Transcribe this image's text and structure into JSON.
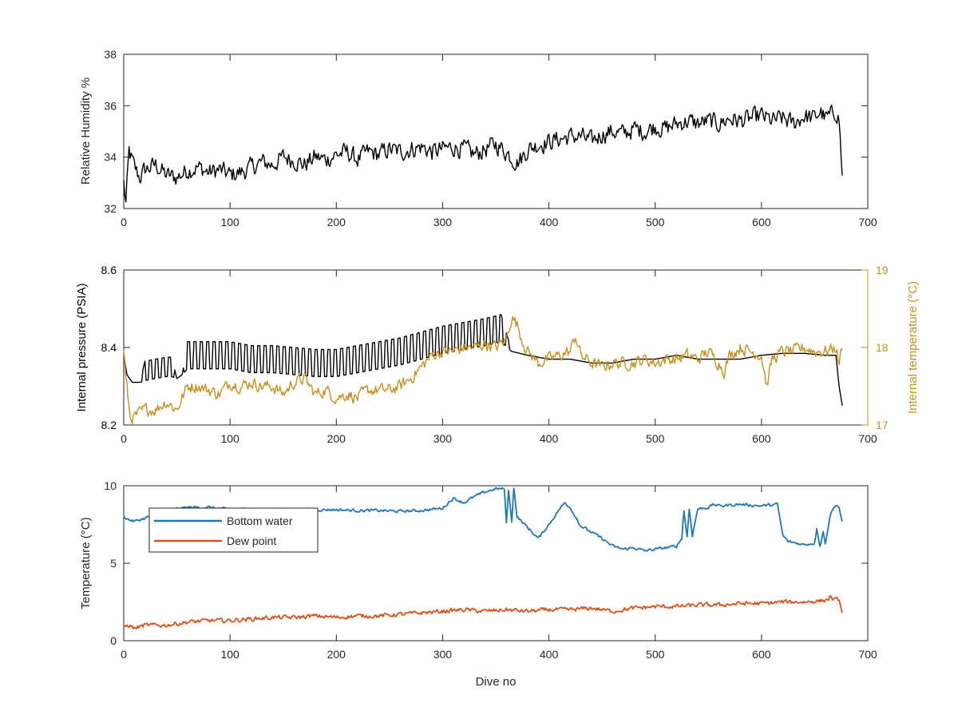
{
  "colors": {
    "black": "#000000",
    "gold": "#c8901a",
    "blue": "#1f77b4",
    "orange": "#d9541a",
    "axis": "#262626"
  },
  "chart_data": [
    {
      "type": "line",
      "id": "humidity",
      "title": "",
      "xlabel": "",
      "ylabel": "Relative Humidity %",
      "xlim": [
        0,
        700
      ],
      "ylim": [
        32,
        38
      ],
      "xticks": [
        "0",
        "100",
        "200",
        "300",
        "400",
        "500",
        "600",
        "700"
      ],
      "yticks": [
        "32",
        "34",
        "36",
        "38"
      ],
      "grid": false,
      "series": [
        {
          "color": "#000000",
          "x": [
            0,
            2,
            5,
            10,
            15,
            20,
            30,
            40,
            50,
            60,
            70,
            80,
            90,
            100,
            110,
            120,
            130,
            140,
            150,
            160,
            170,
            180,
            190,
            200,
            210,
            220,
            230,
            240,
            250,
            260,
            270,
            280,
            290,
            300,
            310,
            320,
            330,
            340,
            350,
            360,
            370,
            375,
            380,
            390,
            400,
            410,
            420,
            430,
            440,
            450,
            460,
            470,
            480,
            490,
            500,
            510,
            520,
            530,
            540,
            550,
            560,
            570,
            580,
            590,
            600,
            610,
            620,
            630,
            640,
            650,
            655,
            660,
            665,
            670,
            673,
            676
          ],
          "y": [
            33.0,
            32.2,
            34.2,
            33.6,
            33.2,
            33.5,
            33.7,
            33.3,
            33.2,
            33.5,
            33.6,
            33.4,
            33.5,
            33.3,
            33.4,
            33.6,
            33.8,
            33.7,
            34.0,
            33.9,
            33.7,
            34.0,
            33.9,
            34.1,
            34.2,
            33.9,
            34.2,
            34.1,
            34.3,
            34.2,
            34.3,
            34.4,
            34.2,
            34.3,
            34.4,
            34.3,
            34.1,
            34.3,
            34.5,
            34.2,
            33.8,
            34.0,
            34.3,
            34.5,
            34.6,
            34.7,
            34.8,
            34.8,
            34.6,
            34.9,
            35.0,
            34.9,
            35.1,
            35.0,
            35.2,
            35.1,
            35.3,
            35.4,
            35.3,
            35.4,
            35.3,
            35.5,
            35.4,
            35.5,
            35.6,
            35.4,
            35.5,
            35.3,
            35.6,
            35.5,
            35.8,
            35.5,
            35.6,
            35.8,
            35.5,
            33.2
          ],
          "noise": 0.4
        }
      ]
    },
    {
      "type": "line",
      "id": "pressure",
      "title": "",
      "xlabel": "",
      "ylabel": "Internal pressure (PSIA)",
      "ylabel_right": "Internal temperature (°C)",
      "xlim": [
        0,
        700
      ],
      "ylim": [
        8.2,
        8.6
      ],
      "ylim_right": [
        17,
        19
      ],
      "xticks": [
        "0",
        "100",
        "200",
        "300",
        "400",
        "500",
        "600",
        "700"
      ],
      "yticks": [
        "8.2",
        "8.4",
        "8.6"
      ],
      "yticks_right": [
        "17",
        "18",
        "19"
      ],
      "grid": false,
      "series": [
        {
          "color": "#000000",
          "axis": "left",
          "x": [
            0,
            3,
            8,
            15,
            20,
            30,
            40,
            45,
            50,
            55,
            60,
            80,
            100,
            120,
            140,
            160,
            180,
            200,
            220,
            240,
            260,
            280,
            300,
            320,
            340,
            355,
            365,
            380,
            400,
            420,
            440,
            460,
            480,
            500,
            520,
            540,
            560,
            580,
            600,
            620,
            640,
            660,
            670,
            673,
            676
          ],
          "y": [
            8.38,
            8.33,
            8.31,
            8.31,
            8.34,
            8.345,
            8.35,
            8.35,
            8.32,
            8.33,
            8.38,
            8.38,
            8.38,
            8.37,
            8.37,
            8.365,
            8.36,
            8.36,
            8.37,
            8.38,
            8.39,
            8.405,
            8.42,
            8.43,
            8.44,
            8.45,
            8.39,
            8.38,
            8.37,
            8.37,
            8.36,
            8.36,
            8.37,
            8.37,
            8.38,
            8.37,
            8.37,
            8.37,
            8.38,
            8.385,
            8.385,
            8.38,
            8.38,
            8.3,
            8.25
          ],
          "osc": [
            0,
            0,
            0,
            0,
            0.05,
            0.05,
            0.05,
            0.05,
            0,
            0,
            0.07,
            0.07,
            0.07,
            0.07,
            0.07,
            0.07,
            0.07,
            0.07,
            0.07,
            0.07,
            0.07,
            0.07,
            0.07,
            0.07,
            0.07,
            0.07,
            0,
            0,
            0,
            0,
            0,
            0,
            0,
            0,
            0,
            0,
            0,
            0,
            0,
            0,
            0,
            0,
            0,
            0,
            0
          ]
        },
        {
          "color": "#c8901a",
          "axis": "right",
          "x": [
            0,
            2,
            6,
            10,
            20,
            30,
            40,
            50,
            60,
            70,
            80,
            90,
            100,
            110,
            120,
            130,
            140,
            150,
            160,
            170,
            180,
            190,
            200,
            210,
            220,
            230,
            240,
            250,
            260,
            270,
            280,
            290,
            300,
            310,
            320,
            330,
            340,
            350,
            360,
            365,
            370,
            375,
            380,
            390,
            400,
            410,
            420,
            425,
            430,
            440,
            450,
            460,
            470,
            480,
            490,
            500,
            510,
            520,
            530,
            540,
            550,
            560,
            565,
            570,
            580,
            590,
            600,
            605,
            610,
            620,
            630,
            640,
            650,
            660,
            670,
            673,
            676
          ],
          "y": [
            18.0,
            17.6,
            17.1,
            17.1,
            17.2,
            17.2,
            17.3,
            17.2,
            17.5,
            17.5,
            17.45,
            17.4,
            17.55,
            17.5,
            17.55,
            17.5,
            17.5,
            17.4,
            17.55,
            17.6,
            17.4,
            17.45,
            17.35,
            17.4,
            17.35,
            17.45,
            17.45,
            17.45,
            17.5,
            17.6,
            17.75,
            17.9,
            17.95,
            17.95,
            18.0,
            18.0,
            18.05,
            18.0,
            18.1,
            18.4,
            18.3,
            18.1,
            17.95,
            17.8,
            17.85,
            17.9,
            17.95,
            18.15,
            17.9,
            17.8,
            17.75,
            17.8,
            17.8,
            17.8,
            17.85,
            17.8,
            17.85,
            17.85,
            17.9,
            17.85,
            17.95,
            17.8,
            17.7,
            17.9,
            18.0,
            17.95,
            17.9,
            17.5,
            17.85,
            17.95,
            17.95,
            18.0,
            17.95,
            17.95,
            18.0,
            17.8,
            18.0
          ],
          "noise": 0.09
        }
      ]
    },
    {
      "type": "line",
      "id": "temperature",
      "title": "",
      "xlabel": "Dive no",
      "ylabel": "Temperature (°C)",
      "xlim": [
        0,
        700
      ],
      "ylim": [
        0,
        10
      ],
      "xticks": [
        "0",
        "100",
        "200",
        "300",
        "400",
        "500",
        "600",
        "700"
      ],
      "yticks": [
        "0",
        "5",
        "10"
      ],
      "grid": false,
      "legend": "top-left",
      "series": [
        {
          "name": "Bottom water",
          "color": "#1f77b4",
          "x": [
            0,
            5,
            10,
            20,
            30,
            40,
            50,
            60,
            80,
            100,
            120,
            140,
            160,
            180,
            200,
            220,
            240,
            260,
            280,
            300,
            310,
            320,
            330,
            340,
            350,
            358,
            360,
            362,
            365,
            367,
            370,
            380,
            390,
            400,
            410,
            415,
            420,
            430,
            440,
            450,
            460,
            470,
            480,
            490,
            500,
            510,
            520,
            525,
            527,
            530,
            532,
            535,
            540,
            550,
            555,
            560,
            580,
            600,
            615,
            620,
            625,
            640,
            650,
            652,
            655,
            658,
            660,
            665,
            670,
            673,
            676
          ],
          "y": [
            8.0,
            7.8,
            7.7,
            7.9,
            8.2,
            8.4,
            8.5,
            8.6,
            8.6,
            8.45,
            8.5,
            8.45,
            8.5,
            8.45,
            8.45,
            8.4,
            8.4,
            8.35,
            8.4,
            8.55,
            9.2,
            8.9,
            9.3,
            9.6,
            9.8,
            9.8,
            7.6,
            9.7,
            7.7,
            9.9,
            8.0,
            7.3,
            6.6,
            7.5,
            8.5,
            8.9,
            8.6,
            7.4,
            7.0,
            6.6,
            6.1,
            5.9,
            6.0,
            5.8,
            5.9,
            6.0,
            6.1,
            6.6,
            8.4,
            6.7,
            8.5,
            6.8,
            8.5,
            8.6,
            8.8,
            8.7,
            8.8,
            8.7,
            8.8,
            6.8,
            6.4,
            6.2,
            6.3,
            7.3,
            6.1,
            7.0,
            6.3,
            8.2,
            8.8,
            8.6,
            7.6
          ],
          "noise": 0.1
        },
        {
          "name": "Dew point",
          "color": "#d9541a",
          "x": [
            0,
            5,
            10,
            20,
            40,
            60,
            80,
            100,
            120,
            140,
            160,
            180,
            200,
            220,
            240,
            260,
            280,
            300,
            320,
            340,
            360,
            380,
            400,
            420,
            440,
            460,
            480,
            500,
            520,
            540,
            560,
            580,
            600,
            620,
            640,
            660,
            665,
            670,
            673,
            676
          ],
          "y": [
            0.9,
            1.0,
            0.8,
            1.0,
            1.0,
            1.2,
            1.3,
            1.3,
            1.4,
            1.5,
            1.5,
            1.6,
            1.5,
            1.6,
            1.6,
            1.7,
            1.8,
            1.9,
            2.0,
            1.9,
            2.0,
            1.9,
            2.0,
            2.0,
            2.1,
            1.9,
            2.1,
            2.2,
            2.2,
            2.3,
            2.3,
            2.4,
            2.4,
            2.5,
            2.5,
            2.6,
            2.8,
            2.6,
            2.7,
            1.7
          ],
          "noise": 0.15
        }
      ]
    }
  ]
}
